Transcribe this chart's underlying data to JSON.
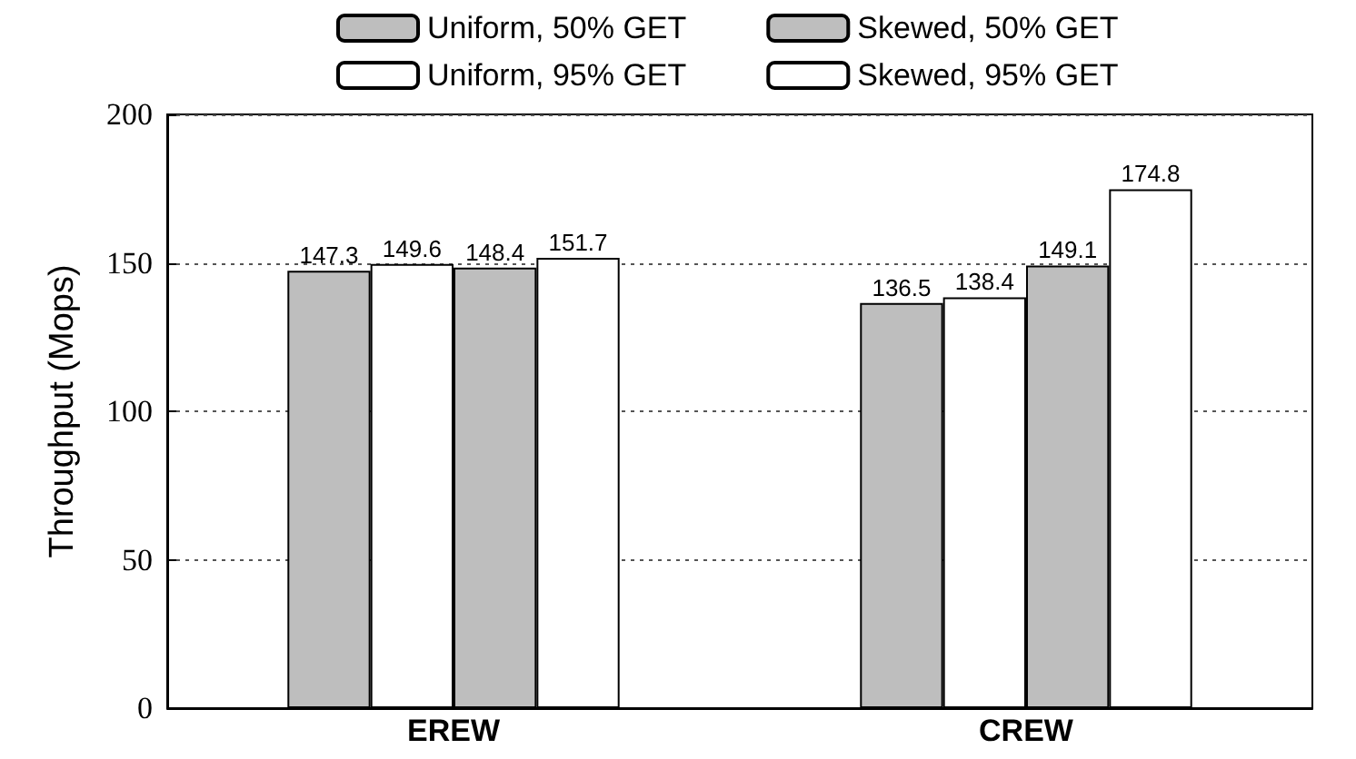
{
  "chart_data": {
    "type": "bar",
    "ylabel": "Throughput (Mops)",
    "categories": [
      "EREW",
      "CREW"
    ],
    "series": [
      {
        "name": "Uniform, 50% GET",
        "color": "#bebebe",
        "values": [
          147.3,
          136.5
        ]
      },
      {
        "name": "Uniform, 95% GET",
        "color": "#ffffff",
        "values": [
          149.6,
          138.4
        ]
      },
      {
        "name": "Skewed, 50% GET",
        "color": "#bebebe",
        "values": [
          148.4,
          149.1
        ]
      },
      {
        "name": "Skewed, 95% GET",
        "color": "#ffffff",
        "values": [
          151.7,
          174.8
        ]
      }
    ],
    "ylim": [
      0,
      200
    ],
    "yticks": [
      0,
      50,
      100,
      150,
      200
    ],
    "grid": "y",
    "legend": "top",
    "data_labels": true
  }
}
